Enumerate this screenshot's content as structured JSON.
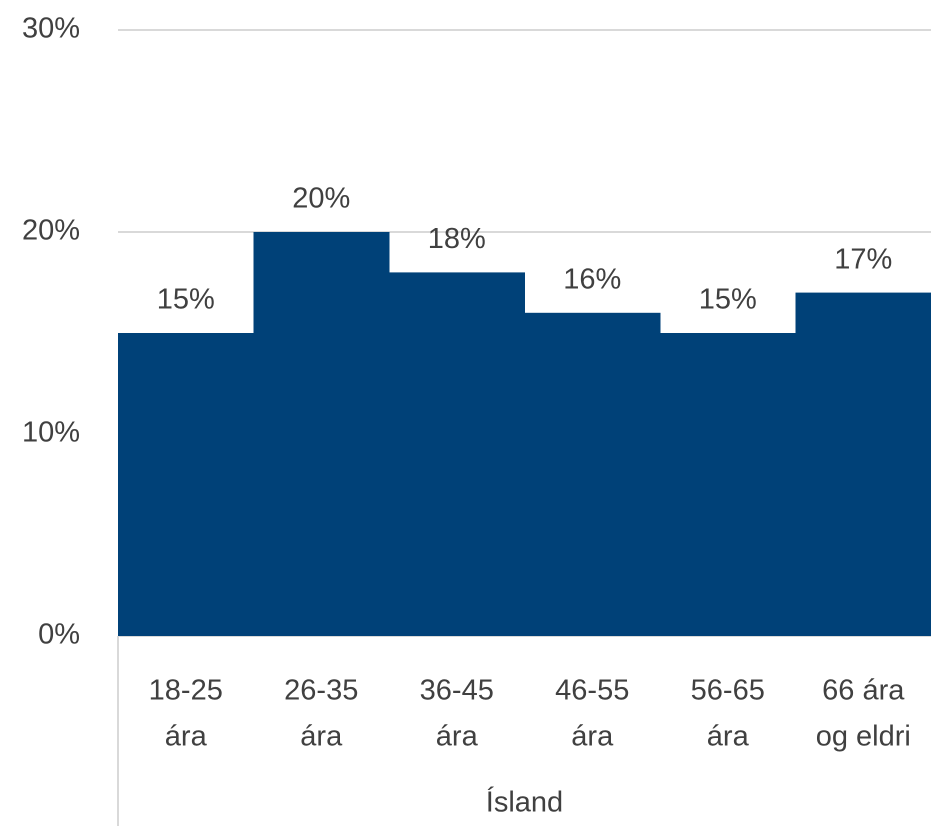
{
  "chart_data": {
    "type": "bar",
    "categories": [
      [
        "18-25",
        "ára"
      ],
      [
        "26-35",
        "ára"
      ],
      [
        "36-45",
        "ára"
      ],
      [
        "46-55",
        "ára"
      ],
      [
        "56-65",
        "ára"
      ],
      [
        "66 ára",
        "og eldri"
      ]
    ],
    "x_label": "Ísland",
    "values": [
      15,
      20,
      18,
      16,
      15,
      17
    ],
    "value_labels": [
      "15%",
      "20%",
      "18%",
      "16%",
      "15%",
      "17%"
    ],
    "color": "#004178",
    "ylim": [
      0,
      30
    ],
    "yticks": [
      {
        "value": 0,
        "label": "0%"
      },
      {
        "value": 10,
        "label": "10%"
      },
      {
        "value": 20,
        "label": "20%"
      },
      {
        "value": 30,
        "label": "30%"
      }
    ],
    "grid": true
  }
}
